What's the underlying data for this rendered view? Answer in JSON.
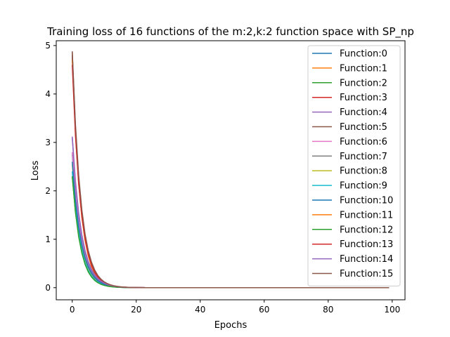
{
  "chart_data": {
    "type": "line",
    "title": "Training loss of 16 functions of the m:2,k:2 function space with SP_np",
    "xlabel": "Epochs",
    "ylabel": "Loss",
    "xlim": [
      -5,
      104
    ],
    "ylim": [
      -0.25,
      5.1
    ],
    "xticks": [
      0,
      20,
      40,
      60,
      80,
      100
    ],
    "yticks": [
      0,
      1,
      2,
      3,
      4,
      5
    ],
    "x_range": [
      0,
      99
    ],
    "grid": false,
    "legend_position": "top-right",
    "series": [
      {
        "name": "Function:0",
        "color": "#1f77b4",
        "initial_loss": 2.75,
        "decay_rate": 0.36
      },
      {
        "name": "Function:1",
        "color": "#ff7f0e",
        "initial_loss": 4.85,
        "decay_rate": 0.4
      },
      {
        "name": "Function:2",
        "color": "#2ca02c",
        "initial_loss": 2.3,
        "decay_rate": 0.38
      },
      {
        "name": "Function:3",
        "color": "#d62728",
        "initial_loss": 4.75,
        "decay_rate": 0.37
      },
      {
        "name": "Function:4",
        "color": "#9467bd",
        "initial_loss": 3.1,
        "decay_rate": 0.36
      },
      {
        "name": "Function:5",
        "color": "#8c564b",
        "initial_loss": 4.8,
        "decay_rate": 0.38
      },
      {
        "name": "Function:6",
        "color": "#e377c2",
        "initial_loss": 2.8,
        "decay_rate": 0.37
      },
      {
        "name": "Function:7",
        "color": "#7f7f7f",
        "initial_loss": 4.88,
        "decay_rate": 0.39
      },
      {
        "name": "Function:8",
        "color": "#bcbd22",
        "initial_loss": 2.55,
        "decay_rate": 0.37
      },
      {
        "name": "Function:9",
        "color": "#17becf",
        "initial_loss": 2.4,
        "decay_rate": 0.38
      },
      {
        "name": "Function:10",
        "color": "#1f77b4",
        "initial_loss": 2.6,
        "decay_rate": 0.36
      },
      {
        "name": "Function:11",
        "color": "#ff7f0e",
        "initial_loss": 4.7,
        "decay_rate": 0.39
      },
      {
        "name": "Function:12",
        "color": "#2ca02c",
        "initial_loss": 2.3,
        "decay_rate": 0.39
      },
      {
        "name": "Function:13",
        "color": "#d62728",
        "initial_loss": 4.6,
        "decay_rate": 0.38
      },
      {
        "name": "Function:14",
        "color": "#9467bd",
        "initial_loss": 3.12,
        "decay_rate": 0.35
      },
      {
        "name": "Function:15",
        "color": "#8c564b",
        "initial_loss": 4.88,
        "decay_rate": 0.37
      }
    ]
  }
}
